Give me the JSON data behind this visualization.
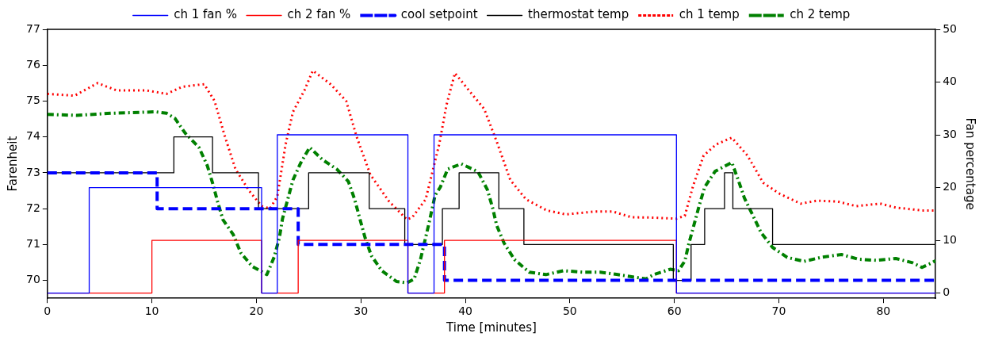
{
  "chart_data": {
    "type": "line",
    "xlabel": "Time [minutes]",
    "ylabel": "Farenheit",
    "y2label": "Fan percentage",
    "xlim": [
      0,
      85
    ],
    "xticks": [
      0,
      10,
      20,
      30,
      40,
      50,
      60,
      70,
      80
    ],
    "ylim": [
      69.5,
      77
    ],
    "yticks": [
      70,
      71,
      72,
      73,
      74,
      75,
      76,
      77
    ],
    "y2lim": [
      -1,
      50
    ],
    "y2ticks": [
      0,
      10,
      20,
      30,
      40,
      50
    ],
    "legend": "top",
    "grid": false,
    "marker": "none",
    "series": [
      {
        "name": "ch 1 fan %",
        "type": "step",
        "axis": "y2",
        "color": "#0000ff",
        "line_style": "solid",
        "x": [
          0,
          4,
          20.5,
          22,
          34.5,
          37,
          60.2,
          85
        ],
        "values": [
          0,
          20,
          0,
          30,
          0,
          30,
          0,
          0
        ]
      },
      {
        "name": "ch 2 fan %",
        "type": "step",
        "axis": "y2",
        "color": "#ff0000",
        "line_style": "solid",
        "x": [
          0,
          10,
          20.5,
          24,
          34.5,
          38,
          60.2,
          85
        ],
        "values": [
          0,
          10,
          0,
          10,
          0,
          10,
          0,
          0
        ]
      },
      {
        "name": "cool setpoint",
        "type": "step",
        "color": "#0000ff",
        "line_style": "dashed",
        "x": [
          0,
          10.5,
          24,
          38,
          85
        ],
        "values": [
          73,
          72,
          71,
          70,
          70
        ]
      },
      {
        "name": "thermostat temp",
        "type": "step",
        "color": "#000000",
        "line_style": "solid",
        "x": [
          0,
          12.1,
          15.8,
          20.2,
          25,
          30.8,
          34.2,
          37.8,
          39.4,
          43.2,
          45.6,
          59.9,
          61.6,
          62.9,
          64.8,
          65.6,
          69.4,
          85
        ],
        "values": [
          73,
          74,
          73,
          72,
          73,
          72,
          71,
          72,
          73,
          72,
          71,
          70,
          71,
          72,
          73,
          72,
          71,
          71
        ]
      },
      {
        "name": "ch 1 temp",
        "type": "line",
        "color": "#ff0000",
        "line_style": "dotted",
        "x": [
          0,
          2.6,
          4.8,
          6.6,
          9.4,
          11.4,
          12.9,
          15,
          16,
          17,
          18,
          19.3,
          20.5,
          21.3,
          22,
          22.8,
          23.5,
          24.6,
          25.4,
          27.1,
          28.6,
          29.6,
          30.9,
          32.7,
          34.4,
          34.9,
          36.2,
          37.5,
          38.2,
          39,
          40.5,
          41.8,
          43,
          44.3,
          45.8,
          47.8,
          49.6,
          52.4,
          54.1,
          55.9,
          58,
          60.2,
          61,
          61.8,
          62.8,
          64,
          65.5,
          67,
          68.5,
          70.1,
          72.1,
          73.6,
          75.6,
          77.4,
          79.7,
          81.2,
          83.7,
          85
        ],
        "values": [
          75.2,
          75.15,
          75.5,
          75.3,
          75.3,
          75.2,
          75.4,
          75.47,
          75,
          74,
          73.1,
          72.5,
          72.07,
          72,
          72.34,
          73.8,
          74.7,
          75.3,
          75.85,
          75.47,
          75,
          74,
          72.95,
          72.2,
          71.7,
          71.75,
          72.26,
          73.8,
          74.9,
          75.78,
          75.24,
          74.78,
          73.87,
          72.8,
          72.26,
          71.95,
          71.84,
          71.92,
          71.92,
          71.76,
          71.75,
          71.72,
          71.8,
          72.64,
          73.48,
          73.79,
          73.98,
          73.48,
          72.72,
          72.41,
          72.14,
          72.22,
          72.2,
          72.07,
          72.14,
          72.03,
          71.95,
          71.95
        ]
      },
      {
        "name": "ch 2 temp",
        "type": "line",
        "color": "#008000",
        "line_style": "dashdot",
        "x": [
          0,
          2.8,
          6.1,
          10.4,
          11.4,
          12.2,
          13.2,
          14.5,
          15.3,
          15.8,
          16.3,
          16.8,
          17.8,
          18.5,
          19.6,
          21,
          21.7,
          22.2,
          22.5,
          23,
          23.5,
          24.2,
          25.1,
          26.3,
          27.7,
          28.8,
          29.4,
          29.9,
          30.4,
          31,
          32,
          33.4,
          34.4,
          35.1,
          35.7,
          36.5,
          37.1,
          37.6,
          38.3,
          39.6,
          41.2,
          42.1,
          42.6,
          43,
          43.7,
          44.7,
          46.1,
          47.7,
          49.4,
          51.2,
          52.9,
          54.6,
          56.4,
          57.3,
          58,
          59.6,
          60.4,
          61,
          61.4,
          61.9,
          62.4,
          62.9,
          63.9,
          65.5,
          66.1,
          66.7,
          67.5,
          68.3,
          69.4,
          70.8,
          72.4,
          74.2,
          76,
          77.6,
          79.3,
          81.2,
          82.8,
          83.7,
          84.5,
          85
        ],
        "values": [
          74.63,
          74.6,
          74.66,
          74.7,
          74.66,
          74.52,
          74.1,
          73.71,
          73.2,
          72.72,
          72.18,
          71.69,
          71.27,
          70.77,
          70.39,
          70.16,
          70.65,
          71.19,
          71.72,
          72.26,
          72.8,
          73.25,
          73.71,
          73.37,
          73.1,
          72.76,
          72.26,
          71.72,
          71.19,
          70.69,
          70.27,
          69.97,
          69.93,
          70.04,
          70.58,
          71.57,
          72.37,
          72.6,
          73.1,
          73.25,
          73.03,
          72.53,
          72.03,
          71.53,
          71.04,
          70.58,
          70.23,
          70.16,
          70.27,
          70.23,
          70.23,
          70.16,
          70.08,
          70.04,
          70.16,
          70.31,
          70.27,
          70.54,
          71.04,
          71.57,
          72.11,
          72.6,
          73.04,
          73.29,
          72.81,
          72.3,
          71.82,
          71.33,
          70.92,
          70.64,
          70.53,
          70.65,
          70.72,
          70.59,
          70.56,
          70.61,
          70.49,
          70.36,
          70.47,
          70.55
        ]
      }
    ]
  }
}
